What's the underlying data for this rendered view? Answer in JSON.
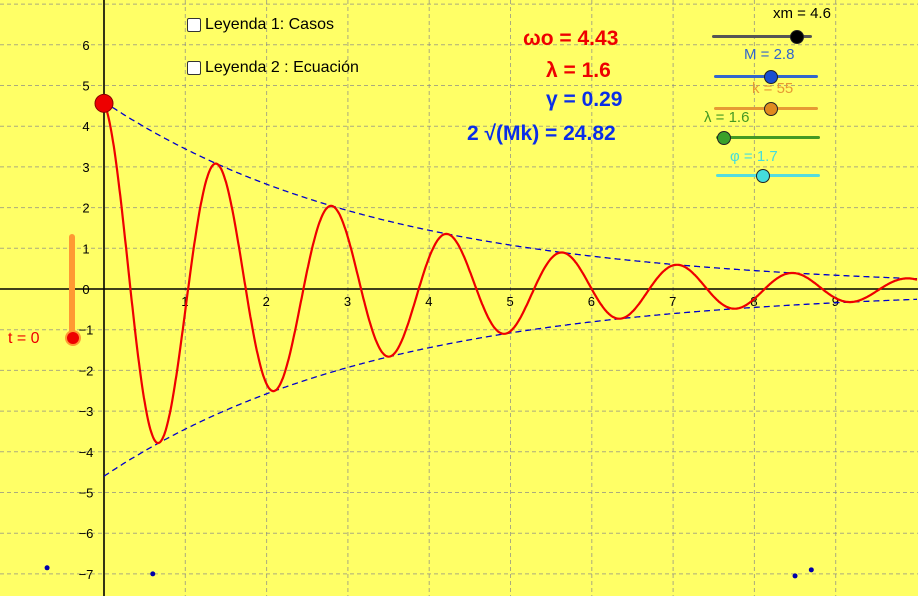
{
  "checkboxes": [
    {
      "label": "Leyenda 1: Casos",
      "checked": false
    },
    {
      "label": "Leyenda 2 : Ecuación",
      "checked": false
    }
  ],
  "formulas": {
    "omega": "ωo = 4.43",
    "lambda": "λ = 1.6",
    "gamma": "γ = 0.29",
    "critical": "2 √(Mk) = 24.82"
  },
  "sliders": [
    {
      "label": "xm = 4.6",
      "color": "#555555",
      "knob": "#000000",
      "value": 0.85
    },
    {
      "label": "M = 2.8",
      "color": "#3366cc",
      "knob": "#1a4fd1",
      "value": 0.55
    },
    {
      "label": "k = 55",
      "color": "#e69a33",
      "knob": "#e08a1e",
      "value": 0.55
    },
    {
      "label": "λ = 1.6",
      "color": "#449922",
      "knob": "#3aa12a",
      "value": 0.08
    },
    {
      "label": "φ = 1.7",
      "color": "#55dddd",
      "knob": "#44dddd",
      "value": 0.45
    }
  ],
  "time_slider": {
    "label": "t = 0",
    "color": "#e65c00",
    "value": 0
  },
  "axes": {
    "x_ticks": [
      "1",
      "2",
      "3",
      "4",
      "5",
      "6",
      "7",
      "8",
      "9"
    ],
    "y_ticks": [
      "6",
      "5",
      "4",
      "3",
      "2",
      "1",
      "0",
      "−1",
      "−2",
      "−3",
      "−4",
      "−5",
      "−6",
      "−7"
    ]
  },
  "colors": {
    "background": "#ffff66",
    "curve": "#ee0000",
    "envelope": "#0000cc",
    "grid": "#888888"
  },
  "chart_data": {
    "type": "line",
    "title": "",
    "xlabel": "",
    "ylabel": "",
    "xlim": [
      -1.05,
      9.75
    ],
    "ylim": [
      -7.4,
      7.15
    ],
    "amplitude": 4.6,
    "lambda": 1.6,
    "gamma": 0.29,
    "omega": 4.43,
    "phi": 1.7,
    "series": [
      {
        "kind": "damped",
        "formula": "y = 4.6·e^(−0.29x)·sin(4.43x + 1.7)"
      },
      {
        "kind": "envelope_upper",
        "formula": "y = 4.6·e^(−0.29x)"
      },
      {
        "kind": "envelope_lower",
        "formula": "y = −4.6·e^(−0.29x)"
      }
    ],
    "markers": [
      {
        "x": -0.7,
        "y": -6.85
      },
      {
        "x": 0.6,
        "y": -7.0
      },
      {
        "x": 8.5,
        "y": -7.05
      },
      {
        "x": 8.7,
        "y": -6.9
      }
    ]
  }
}
